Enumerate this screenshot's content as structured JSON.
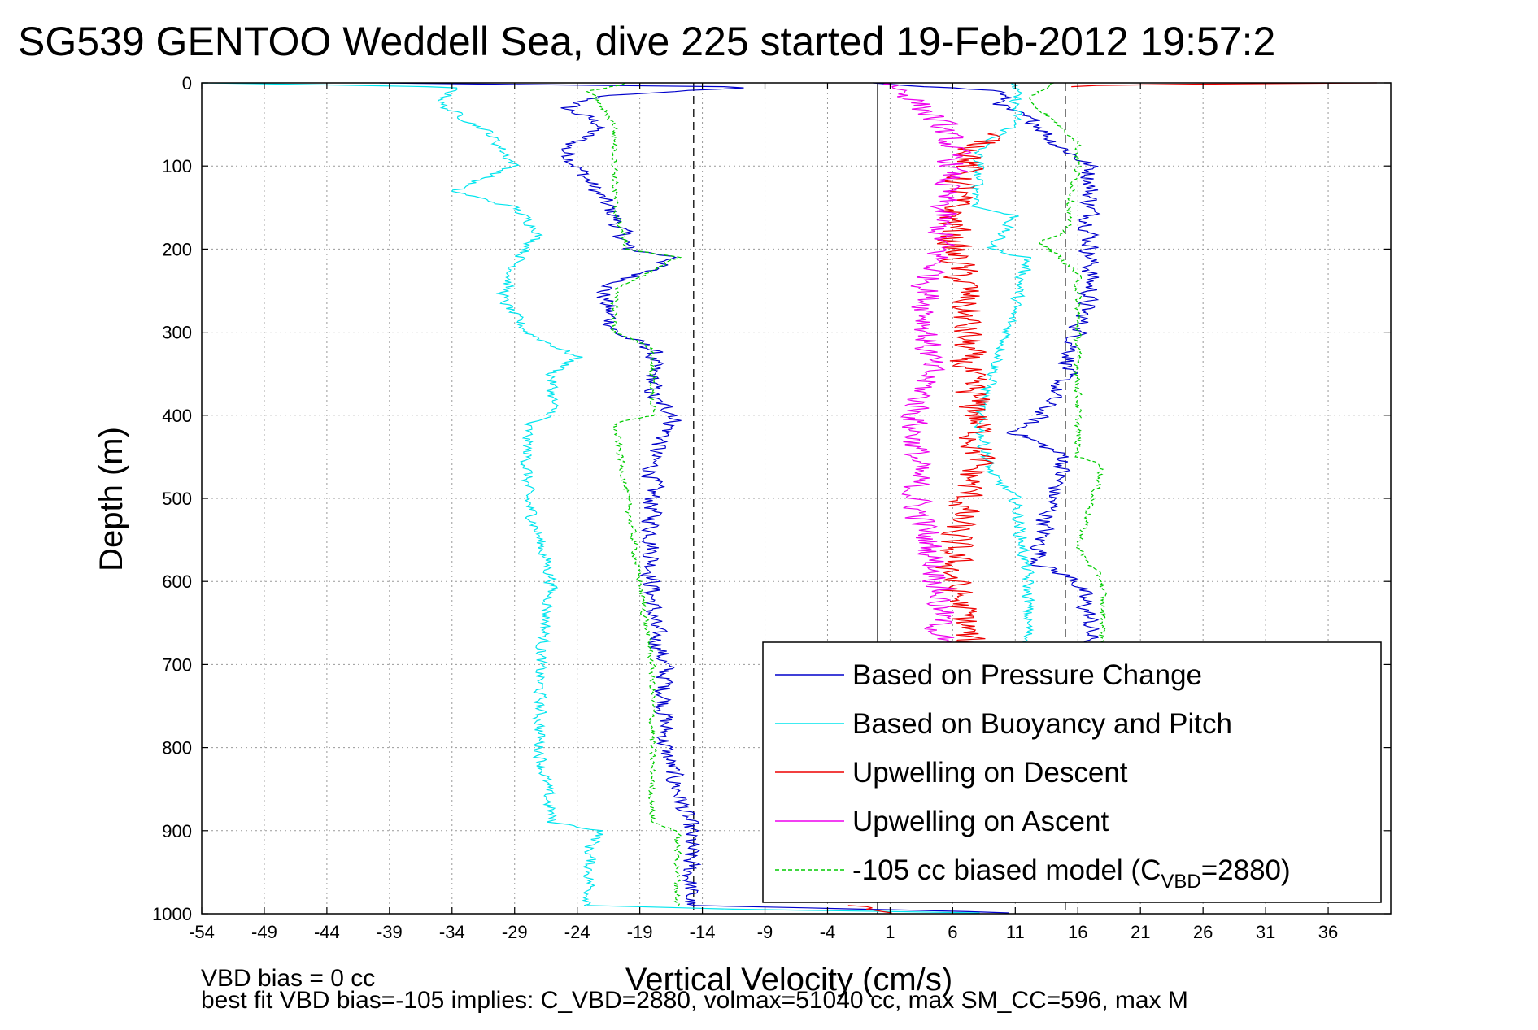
{
  "chart_data": {
    "type": "line",
    "title": "SG539 GENTOO Weddell Sea, dive 225 started 19-Feb-2012 19:57:2",
    "xlabel": "Vertical Velocity (cm/s)",
    "ylabel": "Depth (m)",
    "xlim": [
      -54,
      41
    ],
    "ylim": [
      1000,
      0
    ],
    "y_reversed": true,
    "grid": true,
    "x_ticks": [
      -54,
      -49,
      -44,
      -39,
      -34,
      -29,
      -24,
      -19,
      -14,
      -9,
      -4,
      1,
      6,
      11,
      16,
      21,
      26,
      31,
      36
    ],
    "y_ticks": [
      0,
      100,
      200,
      300,
      400,
      500,
      600,
      700,
      800,
      900,
      1000
    ],
    "vlines": [
      {
        "x": -14.7,
        "style": "dashed",
        "color": "#000000"
      },
      {
        "x": 15.0,
        "style": "dashed",
        "color": "#000000"
      },
      {
        "x": 0.0,
        "style": "solid",
        "color": "#000000"
      }
    ],
    "notes": [
      "VBD bias = 0 cc",
      "best fit VBD bias=-105 implies: C_VBD=2880, volmax=51040 cc, max SM_CC=596, max M"
    ],
    "legend": {
      "placement": "bottom-right",
      "entries": [
        {
          "label": "Based on Pressure Change",
          "color": "#0000cc",
          "style": "solid"
        },
        {
          "label": "Based on Buoyancy and Pitch",
          "color": "#00e5ee",
          "style": "solid"
        },
        {
          "label": "Upwelling on Descent",
          "color": "#ee0000",
          "style": "solid"
        },
        {
          "label": "Upwelling on Ascent",
          "color": "#ee00ee",
          "style": "solid"
        },
        {
          "label": "-105 cc biased model (C",
          "sub": "VBD",
          "suffix": "=2880)",
          "color": "#00cc00",
          "style": "dashed"
        }
      ]
    },
    "series": [
      {
        "name": "Based on Pressure Change",
        "color": "#0000cc",
        "style": "solid",
        "noise": 0.7,
        "segments": [
          {
            "depth": [
              0,
              5,
              15,
              30,
              50,
              80,
              120,
              160,
              200,
              210,
              250,
              300,
              320,
              380,
              400,
              450,
              550,
              650,
              700,
              800,
              850,
              900,
              950,
              990
            ],
            "x": [
              -40,
              -10,
              -22,
              -25,
              -22,
              -25,
              -23,
              -21,
              -20,
              -16,
              -22,
              -21,
              -18,
              -18,
              -16,
              -18,
              -18,
              -18,
              -17,
              -17,
              -16,
              -15,
              -15,
              -15
            ]
          },
          {
            "depth": [
              990,
              995,
              1000
            ],
            "x": [
              -15,
              0,
              13
            ]
          },
          {
            "depth": [
              0,
              10,
              30,
              50,
              70,
              100,
              150,
              200,
              250,
              300,
              350,
              400,
              420,
              450,
              500,
              550,
              580,
              600,
              650,
              680
            ],
            "x": [
              0,
              10,
              10,
              13,
              14,
              17,
              17,
              17,
              17,
              16,
              15,
              13,
              11,
              15,
              14,
              13,
              13,
              16,
              17,
              17
            ]
          }
        ]
      },
      {
        "name": "Based on Buoyancy and Pitch",
        "color": "#00e5ee",
        "style": "solid",
        "noise": 0.45,
        "segments": [
          {
            "depth": [
              0,
              5,
              10,
              25,
              60,
              100,
              130,
              150,
              180,
              220,
              260,
              300,
              330,
              350,
              400,
              410,
              500,
              600,
              700,
              800,
              890,
              900,
              920,
              950,
              990
            ],
            "x": [
              -54,
              -34,
              -34,
              -35,
              -31,
              -29,
              -34,
              -29,
              -27,
              -29,
              -30,
              -28,
              -24,
              -26,
              -26,
              -28,
              -28,
              -26,
              -27,
              -27,
              -26,
              -22,
              -23,
              -23,
              -23
            ]
          },
          {
            "depth": [
              990,
              995,
              1000
            ],
            "x": [
              -23,
              -10,
              12
            ]
          },
          {
            "depth": [
              0,
              30,
              50,
              70,
              80,
              100,
              150,
              160,
              200,
              210,
              320,
              400,
              470,
              500,
              600,
              680
            ],
            "x": [
              11,
              11,
              11,
              9,
              8,
              8,
              8,
              11,
              9,
              12,
              10,
              8,
              9,
              11,
              12,
              12
            ]
          }
        ]
      },
      {
        "name": "Upwelling on Descent",
        "color": "#ee0000",
        "style": "solid",
        "noise": 1.3,
        "segments": [
          {
            "depth": [
              0,
              2,
              5
            ],
            "x": [
              40,
              20,
              15
            ]
          },
          {
            "depth": [
              60,
              80,
              100,
              150,
              200,
              250,
              300,
              350,
              400,
              450,
              500,
              550,
              600,
              650,
              680
            ],
            "x": [
              9,
              8,
              7,
              6,
              6,
              7,
              7,
              7,
              8,
              8,
              7,
              6,
              6,
              7,
              7
            ]
          },
          {
            "depth": [
              990,
              1000
            ],
            "x": [
              -2,
              2
            ]
          }
        ]
      },
      {
        "name": "Upwelling on Ascent",
        "color": "#ee00ee",
        "style": "solid",
        "noise": 1.1,
        "segments": [
          {
            "depth": [
              0,
              20,
              50,
              80,
              100,
              150,
              200,
              250,
              300,
              350,
              400,
              450,
              500,
              550,
              600,
              650,
              680
            ],
            "x": [
              1,
              3,
              5,
              6,
              6,
              5,
              5,
              4,
              4,
              4,
              3,
              3,
              3,
              4,
              5,
              5,
              5
            ]
          }
        ]
      },
      {
        "name": "-105 cc biased model (CVBD=2880)",
        "color": "#00cc00",
        "style": "dashed",
        "noise": 0.25,
        "segments": [
          {
            "depth": [
              0,
              10,
              30,
              50,
              100,
              150,
              200,
              210,
              250,
              300,
              320,
              400,
              410,
              500,
              600,
              700,
              800,
              890,
              900,
              990
            ],
            "x": [
              -20,
              -23,
              -22,
              -21,
              -21,
              -21,
              -20,
              -16,
              -21,
              -21,
              -18,
              -18,
              -21,
              -20,
              -19,
              -18,
              -18,
              -18,
              -16,
              -16
            ]
          },
          {
            "depth": [
              0,
              20,
              70,
              100,
              180,
              190,
              230,
              450,
              460,
              560,
              580,
              600,
              680
            ],
            "x": [
              14,
              12,
              16,
              16,
              15,
              13,
              16,
              16,
              18,
              16,
              17,
              18,
              18
            ]
          }
        ]
      }
    ]
  }
}
